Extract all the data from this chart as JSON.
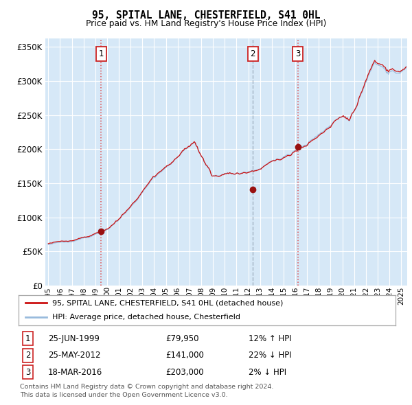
{
  "title": "95, SPITAL LANE, CHESTERFIELD, S41 0HL",
  "subtitle": "Price paid vs. HM Land Registry's House Price Index (HPI)",
  "legend_property": "95, SPITAL LANE, CHESTERFIELD, S41 0HL (detached house)",
  "legend_hpi": "HPI: Average price, detached house, Chesterfield",
  "footer1": "Contains HM Land Registry data © Crown copyright and database right 2024.",
  "footer2": "This data is licensed under the Open Government Licence v3.0.",
  "transactions": [
    {
      "num": 1,
      "date": "25-JUN-1999",
      "price_str": "£79,950",
      "price": 79950,
      "pct_str": "12% ↑ HPI",
      "year": 1999.48
    },
    {
      "num": 2,
      "date": "25-MAY-2012",
      "price_str": "£141,000",
      "price": 141000,
      "pct_str": "22% ↓ HPI",
      "year": 2012.4
    },
    {
      "num": 3,
      "date": "18-MAR-2016",
      "price_str": "£203,000",
      "price": 203000,
      "pct_str": "2% ↓ HPI",
      "year": 2016.21
    }
  ],
  "ylim": [
    0,
    362500
  ],
  "xlim_start": 1994.75,
  "xlim_end": 2025.5,
  "bg_color": "#d6e8f7",
  "grid_color": "#ffffff",
  "line_color_property": "#cc1111",
  "line_color_hpi": "#99bbdd",
  "marker_color": "#991111",
  "vline_red_color": "#dd3333",
  "vline_blue_color": "#99aabb",
  "box_edge_color": "#cc2222",
  "title_font": "DejaVu Sans Mono",
  "year_start": 1995,
  "year_end": 2025
}
